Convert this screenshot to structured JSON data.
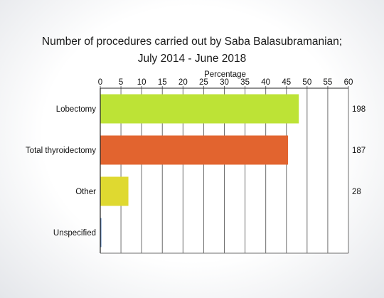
{
  "chart_data": {
    "type": "bar",
    "orientation": "horizontal",
    "title": "Number of procedures carried out by Saba Balasubramanian;",
    "subtitle": "July 2014 - June 2018",
    "xlabel": "Percentage",
    "ylabel": "",
    "xlim": [
      0,
      60
    ],
    "ticks": [
      "0",
      "5",
      "10",
      "15",
      "20",
      "25",
      "30",
      "35",
      "40",
      "45",
      "50",
      "55",
      "60"
    ],
    "axis_position": "top",
    "grid": true,
    "categories": [
      "Lobectomy",
      "Total thyroidectomy",
      "Other",
      "Unspecified"
    ],
    "values": [
      48.0,
      45.4,
      6.8,
      0.2
    ],
    "counts": [
      "198",
      "187",
      "28",
      ""
    ],
    "colors": [
      "#bde336",
      "#e2642f",
      "#dfd930",
      "#4a7ab5"
    ]
  }
}
